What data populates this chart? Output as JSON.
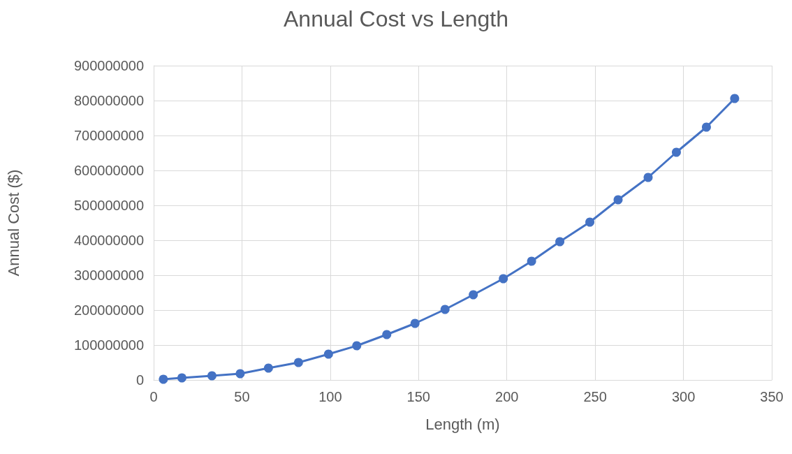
{
  "chart_data": {
    "type": "line",
    "title": "Annual Cost vs Length",
    "xlabel": "Length (m)",
    "ylabel": "Annual Cost ($)",
    "x": [
      5.5,
      16,
      33,
      49,
      65,
      82,
      99,
      115,
      132,
      148,
      165,
      181,
      198,
      214,
      230,
      247,
      263,
      280,
      296,
      313,
      329
    ],
    "series": [
      {
        "color": "#4472c4",
        "values": [
          2000000,
          6000000,
          12000000,
          18000000,
          34000000,
          50000000,
          74000000,
          98000000,
          130000000,
          162000000,
          202000000,
          244000000,
          290000000,
          340000000,
          396000000,
          452000000,
          516000000,
          580000000,
          652000000,
          724000000,
          806000000
        ]
      }
    ],
    "xlim": [
      0,
      350
    ],
    "xticks": [
      0,
      50,
      100,
      150,
      200,
      250,
      300,
      350
    ],
    "ylim": [
      0,
      900000000
    ],
    "yticks": [
      0,
      100000000,
      200000000,
      300000000,
      400000000,
      500000000,
      600000000,
      700000000,
      800000000,
      900000000
    ],
    "grid": true,
    "marker": "circle",
    "line_style": "solid"
  }
}
